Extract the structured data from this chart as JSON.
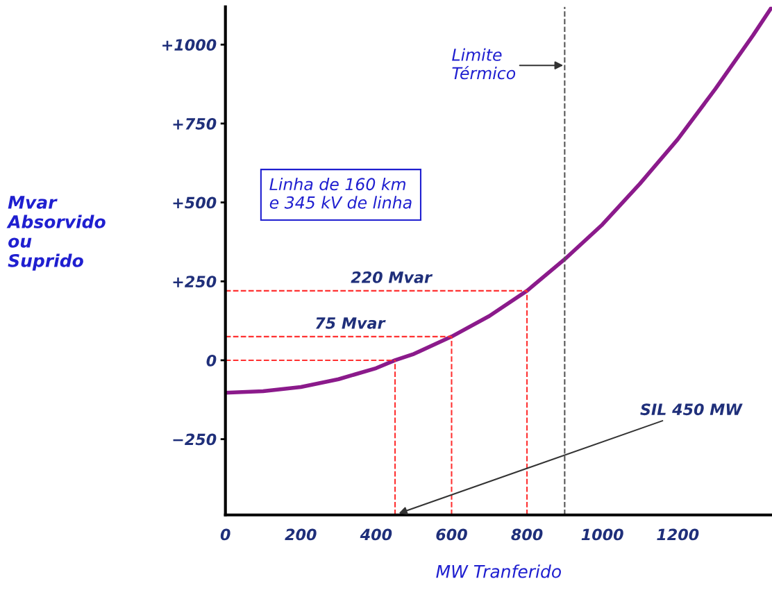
{
  "chart_data": {
    "type": "line",
    "xlabel": "MW Tranferido",
    "ylabel": "Mvar\nAbsorvido\nou\nSuprido",
    "x": [
      0,
      100,
      200,
      300,
      400,
      450,
      500,
      600,
      700,
      800,
      900,
      1000,
      1100,
      1200,
      1300,
      1400,
      1450
    ],
    "series": [
      {
        "color": "#8b1a8b",
        "values": [
          -103,
          -98,
          -85,
          -60,
          -25,
          0,
          20,
          75,
          140,
          220,
          320,
          430,
          560,
          700,
          860,
          1030,
          1120
        ]
      }
    ],
    "xlim": [
      0,
      1450
    ],
    "ylim": [
      -490,
      1120
    ],
    "xticks": [
      0,
      200,
      400,
      600,
      800,
      1000,
      1200
    ],
    "yticks": [
      {
        "value": -250,
        "label": "−250"
      },
      0,
      {
        "value": 250,
        "label": "+250"
      },
      {
        "value": 500,
        "label": "+500"
      },
      {
        "value": 750,
        "label": "+750"
      },
      {
        "value": 1000,
        "label": "+1000"
      }
    ],
    "ref_lines": [
      {
        "axis": "y",
        "value": 0,
        "label": null,
        "color": "#ff3030",
        "line_style": "dashed"
      },
      {
        "axis": "y",
        "value": 75,
        "label": "75 Mvar",
        "color": "#ff3030",
        "line_style": "dashed"
      },
      {
        "axis": "y",
        "value": 220,
        "label": "220 Mvar",
        "color": "#ff3030",
        "line_style": "dashed"
      },
      {
        "axis": "x",
        "value": 450,
        "label": "SIL 450 MW",
        "color": "#ff3030",
        "line_style": "dashed"
      },
      {
        "axis": "x",
        "value": 600,
        "label": null,
        "color": "#ff3030",
        "line_style": "dashed"
      },
      {
        "axis": "x",
        "value": 800,
        "label": null,
        "color": "#ff3030",
        "line_style": "dashed"
      },
      {
        "axis": "x",
        "value": 900,
        "label": "Limite\nTérmico",
        "color": "#555555",
        "line_style": "dashed"
      }
    ],
    "annotations": [
      "Linha de 160 km\ne 345 kV de linha"
    ],
    "grid": false,
    "legend": false,
    "line_style": "solid",
    "marker": "none"
  }
}
